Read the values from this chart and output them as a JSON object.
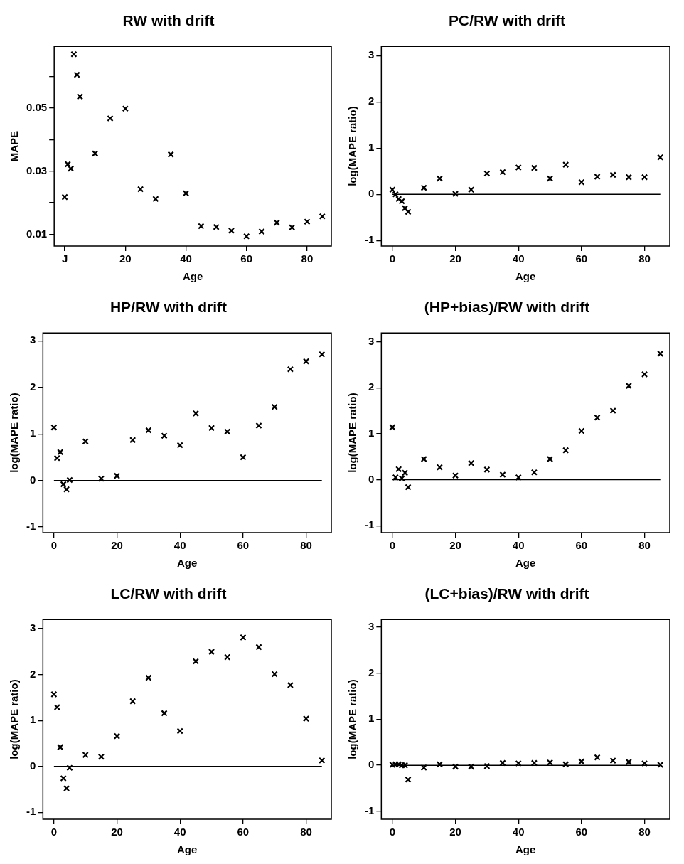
{
  "chart_data": [
    {
      "type": "scatter",
      "title": "RW with drift",
      "xlabel": "Age",
      "ylabel": "MAPE",
      "marker": "cross",
      "grid": false,
      "legend": false,
      "xlim": [
        -3.5,
        88
      ],
      "ylim": [
        0.0063,
        0.0695
      ],
      "xticks": [
        {
          "value": 0,
          "label": "J"
        },
        20,
        40,
        60,
        80
      ],
      "yticks": [
        0.01,
        {
          "value": 0.02,
          "label": null
        },
        0.03,
        {
          "value": 0.04,
          "label": null
        },
        0.05,
        {
          "value": 0.06,
          "label": null
        }
      ],
      "series": [
        {
          "color": "#000000",
          "x": [
            0,
            1,
            2,
            3,
            4,
            5,
            10,
            15,
            20,
            25,
            30,
            35,
            40,
            45,
            50,
            55,
            60,
            65,
            70,
            75,
            80,
            85
          ],
          "values": [
            0.0218,
            0.0322,
            0.0308,
            0.067,
            0.0605,
            0.0536,
            0.0356,
            0.0467,
            0.0498,
            0.0243,
            0.0212,
            0.0353,
            0.023,
            0.0126,
            0.0123,
            0.0112,
            0.0094,
            0.0109,
            0.0137,
            0.0122,
            0.014,
            0.0157
          ]
        }
      ]
    },
    {
      "type": "scatter",
      "title": "PC/RW with drift",
      "xlabel": "Age",
      "ylabel": "log(MAPE ratio)",
      "marker": "cross",
      "grid": false,
      "legend": false,
      "xlim": [
        -3.5,
        88
      ],
      "ylim": [
        -1.12,
        3.2
      ],
      "xticks": [
        0,
        20,
        40,
        60,
        80
      ],
      "yticks": [
        -1,
        0,
        1,
        2,
        3
      ],
      "ref_lines": [
        {
          "axis": "y",
          "value": 0
        }
      ],
      "series": [
        {
          "color": "#000000",
          "x": [
            0,
            1,
            2,
            3,
            4,
            5,
            10,
            15,
            20,
            25,
            30,
            35,
            40,
            45,
            50,
            55,
            60,
            65,
            70,
            75,
            80,
            85
          ],
          "values": [
            0.1,
            0.0,
            -0.1,
            -0.15,
            -0.3,
            -0.38,
            0.14,
            0.34,
            0.01,
            0.1,
            0.45,
            0.48,
            0.58,
            0.57,
            0.34,
            0.64,
            0.26,
            0.38,
            0.42,
            0.37,
            0.37,
            0.8
          ]
        }
      ]
    },
    {
      "type": "scatter",
      "title": "HP/RW with drift",
      "xlabel": "Age",
      "ylabel": "log(MAPE ratio)",
      "marker": "cross",
      "grid": false,
      "legend": false,
      "xlim": [
        -3.5,
        88
      ],
      "ylim": [
        -1.12,
        3.17
      ],
      "xticks": [
        0,
        20,
        40,
        60,
        80
      ],
      "yticks": [
        -1,
        0,
        1,
        2,
        3
      ],
      "ref_lines": [
        {
          "axis": "y",
          "value": 0
        }
      ],
      "series": [
        {
          "color": "#000000",
          "x": [
            0,
            1,
            2,
            3,
            4,
            5,
            10,
            15,
            20,
            25,
            30,
            35,
            40,
            45,
            50,
            55,
            60,
            65,
            70,
            75,
            80,
            85
          ],
          "values": [
            1.14,
            0.48,
            0.61,
            -0.08,
            -0.19,
            0.01,
            0.84,
            0.04,
            0.1,
            0.87,
            1.08,
            0.96,
            0.76,
            1.44,
            1.13,
            1.05,
            0.5,
            1.18,
            1.58,
            2.39,
            2.56,
            2.71
          ]
        }
      ]
    },
    {
      "type": "scatter",
      "title": "(HP+bias)/RW with drift",
      "xlabel": "Age",
      "ylabel": "log(MAPE ratio)",
      "marker": "cross",
      "grid": false,
      "legend": false,
      "xlim": [
        -3.5,
        88
      ],
      "ylim": [
        -1.15,
        3.19
      ],
      "xticks": [
        0,
        20,
        40,
        60,
        80
      ],
      "yticks": [
        -1,
        0,
        1,
        2,
        3
      ],
      "ref_lines": [
        {
          "axis": "y",
          "value": 0
        }
      ],
      "series": [
        {
          "color": "#000000",
          "x": [
            0,
            1,
            2,
            3,
            4,
            5,
            10,
            15,
            20,
            25,
            30,
            35,
            40,
            45,
            50,
            55,
            60,
            65,
            70,
            75,
            80,
            85
          ],
          "values": [
            1.14,
            0.05,
            0.23,
            0.03,
            0.15,
            -0.16,
            0.45,
            0.27,
            0.09,
            0.36,
            0.22,
            0.11,
            0.05,
            0.16,
            0.45,
            0.64,
            1.06,
            1.35,
            1.5,
            2.04,
            2.29,
            2.74
          ]
        }
      ]
    },
    {
      "type": "scatter",
      "title": "LC/RW with drift",
      "xlabel": "Age",
      "ylabel": "log(MAPE ratio)",
      "marker": "cross",
      "grid": false,
      "legend": false,
      "xlim": [
        -3.5,
        88
      ],
      "ylim": [
        -1.15,
        3.2
      ],
      "xticks": [
        0,
        20,
        40,
        60,
        80
      ],
      "yticks": [
        -1,
        0,
        1,
        2,
        3
      ],
      "ref_lines": [
        {
          "axis": "y",
          "value": 0
        }
      ],
      "series": [
        {
          "color": "#000000",
          "x": [
            0,
            1,
            2,
            3,
            4,
            5,
            10,
            15,
            20,
            25,
            30,
            35,
            40,
            45,
            50,
            55,
            60,
            65,
            70,
            75,
            80,
            85
          ],
          "values": [
            1.57,
            1.29,
            0.42,
            -0.26,
            -0.48,
            -0.03,
            0.25,
            0.21,
            0.66,
            1.42,
            1.93,
            1.16,
            0.77,
            2.29,
            2.5,
            2.38,
            2.81,
            2.6,
            2.01,
            1.77,
            1.04,
            0.13
          ]
        }
      ]
    },
    {
      "type": "scatter",
      "title": "(LC+bias)/RW with drift",
      "xlabel": "Age",
      "ylabel": "log(MAPE ratio)",
      "marker": "cross",
      "grid": false,
      "legend": false,
      "xlim": [
        -3.5,
        88
      ],
      "ylim": [
        -1.17,
        3.16
      ],
      "xticks": [
        0,
        20,
        40,
        60,
        80
      ],
      "yticks": [
        -1,
        0,
        1,
        2,
        3
      ],
      "ref_lines": [
        {
          "axis": "y",
          "value": 0
        }
      ],
      "series": [
        {
          "color": "#000000",
          "x": [
            0,
            1,
            2,
            3,
            4,
            5,
            10,
            15,
            20,
            25,
            30,
            35,
            40,
            45,
            50,
            55,
            60,
            65,
            70,
            75,
            80,
            85
          ],
          "values": [
            0.01,
            0.02,
            0.02,
            0.0,
            0.0,
            -0.31,
            -0.05,
            0.02,
            -0.03,
            -0.03,
            -0.02,
            0.05,
            0.04,
            0.05,
            0.06,
            0.02,
            0.08,
            0.17,
            0.1,
            0.07,
            0.04,
            0.01
          ]
        }
      ]
    }
  ]
}
